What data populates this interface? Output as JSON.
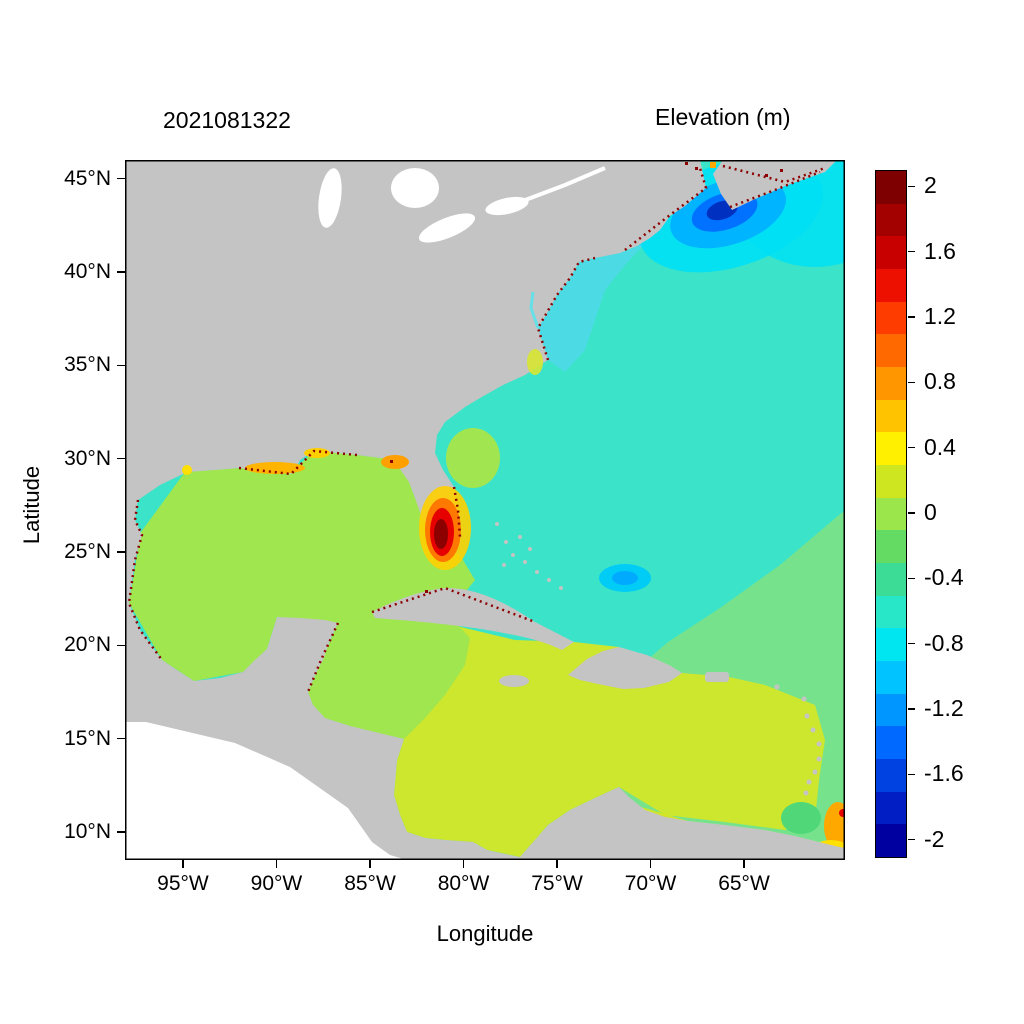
{
  "page": {
    "background": "#ffffff"
  },
  "header": {
    "timestamp_title": "2021081322",
    "colorbar_title": "Elevation (m)"
  },
  "axes": {
    "xlabel": "Longitude",
    "ylabel": "Latitude",
    "xtick_labels": [
      "95°W",
      "90°W",
      "85°W",
      "80°W",
      "75°W",
      "70°W",
      "65°W"
    ],
    "xtick_values": [
      -95,
      -90,
      -85,
      -80,
      -75,
      -70,
      -65
    ],
    "ytick_labels": [
      "45°N",
      "40°N",
      "35°N",
      "30°N",
      "25°N",
      "20°N",
      "15°N",
      "10°N"
    ],
    "ytick_values": [
      45,
      40,
      35,
      30,
      25,
      20,
      15,
      10
    ]
  },
  "chart_data": {
    "type": "heatmap",
    "title": "2021081322",
    "colorbar_title": "Elevation (m)",
    "xlabel": "Longitude",
    "ylabel": "Latitude",
    "lon_range": [
      -98.1,
      -59.6
    ],
    "lat_range": [
      8.5,
      46.0
    ],
    "value_range_m": [
      -2,
      2
    ],
    "grid": false,
    "colorbar_position": "right",
    "colorbar": {
      "ticks": [
        "2",
        "1.6",
        "1.2",
        "0.8",
        "0.4",
        "0",
        "-0.4",
        "-0.8",
        "-1.2",
        "-1.6",
        "-2"
      ],
      "tick_values": [
        2,
        1.6,
        1.2,
        0.8,
        0.4,
        0,
        -0.4,
        -0.8,
        -1.2,
        -1.6,
        -2
      ],
      "cell_values_top_to_bottom": [
        2.0,
        1.8,
        1.6,
        1.4,
        1.2,
        1.0,
        0.8,
        0.6,
        0.4,
        0.2,
        0.0,
        -0.2,
        -0.4,
        -0.6,
        -0.8,
        -1.0,
        -1.2,
        -1.4,
        -1.6,
        -1.8,
        -2.0
      ],
      "colors_top_to_bottom": [
        "#7F0000",
        "#A30000",
        "#C80000",
        "#ED0F00",
        "#FF3C00",
        "#FF6900",
        "#FF9600",
        "#FFC300",
        "#FFF000",
        "#CDE620",
        "#9BE64B",
        "#64DC64",
        "#3CDC96",
        "#28E6C8",
        "#00E6F0",
        "#00C3FF",
        "#0096FF",
        "#0069FF",
        "#0041E1",
        "#001EC3",
        "#0000A0"
      ]
    },
    "regions": [
      {
        "name": "gulf_of_mexico",
        "approx_elevation_m": 0.1,
        "color": "#9FE64F"
      },
      {
        "name": "western_caribbean",
        "approx_elevation_m": 0.1,
        "color": "#9FE64F"
      },
      {
        "name": "central_caribbean",
        "approx_elevation_m": 0.3,
        "color": "#CDE62E"
      },
      {
        "name": "southern_caribbean",
        "approx_elevation_m": 0.35,
        "color": "#E7E414"
      },
      {
        "name": "northwest_atlantic",
        "approx_elevation_m": -0.4,
        "color": "#3BE3C9"
      },
      {
        "name": "southeast_atlantic",
        "approx_elevation_m": -0.2,
        "color": "#76E38C"
      },
      {
        "name": "east_coast_shelf_band",
        "approx_elevation_m": -0.6,
        "color": "#4FD9E8"
      },
      {
        "name": "gulf_of_maine_outer",
        "approx_elevation_m": -0.7,
        "color": "#00E0F5"
      },
      {
        "name": "gulf_of_maine_mid",
        "approx_elevation_m": -1.1,
        "color": "#00B4FF"
      },
      {
        "name": "gulf_of_maine_inner",
        "approx_elevation_m": -1.4,
        "color": "#0072FF"
      },
      {
        "name": "gulf_of_maine_core",
        "approx_elevation_m": -1.8,
        "color": "#0030C0"
      },
      {
        "name": "florida_surge_halo",
        "approx_elevation_m": 0.5,
        "color": "#FFD000"
      },
      {
        "name": "florida_surge_orange",
        "approx_elevation_m": 1.0,
        "color": "#FF7800"
      },
      {
        "name": "florida_surge_red",
        "approx_elevation_m": 1.6,
        "color": "#E60000"
      },
      {
        "name": "florida_surge_core",
        "approx_elevation_m": 2.1,
        "color": "#8C0000"
      },
      {
        "name": "offshore_ne_florida_patch",
        "approx_elevation_m": 0.2,
        "color": "#B4E63C"
      },
      {
        "name": "louisiana_coastal_band",
        "approx_elevation_m": 0.7,
        "color": "#FFB400"
      },
      {
        "name": "big_bend_patch",
        "approx_elevation_m": 0.7,
        "color": "#FFA000"
      },
      {
        "name": "turks_caicos_low_outer",
        "approx_elevation_m": -0.8,
        "color": "#00CCF5"
      },
      {
        "name": "turks_caicos_low_inner",
        "approx_elevation_m": -1.0,
        "color": "#00AAFF"
      },
      {
        "name": "se_corner_green_patch",
        "approx_elevation_m": -0.1,
        "color": "#50D878"
      },
      {
        "name": "se_corner_orange_patch",
        "approx_elevation_m": 0.8,
        "color": "#FFA800"
      },
      {
        "name": "se_corner_yellow_patch",
        "approx_elevation_m": 0.5,
        "color": "#FFE000"
      },
      {
        "name": "land",
        "approx_elevation_m": null,
        "color": "#C4C4C4"
      },
      {
        "name": "outside_model_domain",
        "approx_elevation_m": null,
        "color": "#FFFFFF"
      },
      {
        "name": "coastal_high_speckles",
        "approx_elevation_m": 2.0,
        "color": "#8C0000"
      },
      {
        "name": "pamlico_sound_patch",
        "approx_elevation_m": 0.3,
        "color": "#D8E632"
      },
      {
        "name": "chesapeake_bay_sliver",
        "approx_elevation_m": -0.6,
        "color": "#66E0E8"
      },
      {
        "name": "top_right_cyan",
        "approx_elevation_m": -0.7,
        "color": "#00E0F5"
      }
    ],
    "notes": "Sea-surface elevation field over the Gulf of Mexico, Caribbean and western North Atlantic; dark-red speckles mark coastal high-water points; deep-blue minimum in the Gulf of Maine; dark-red maximum on the southeast Florida coast."
  }
}
